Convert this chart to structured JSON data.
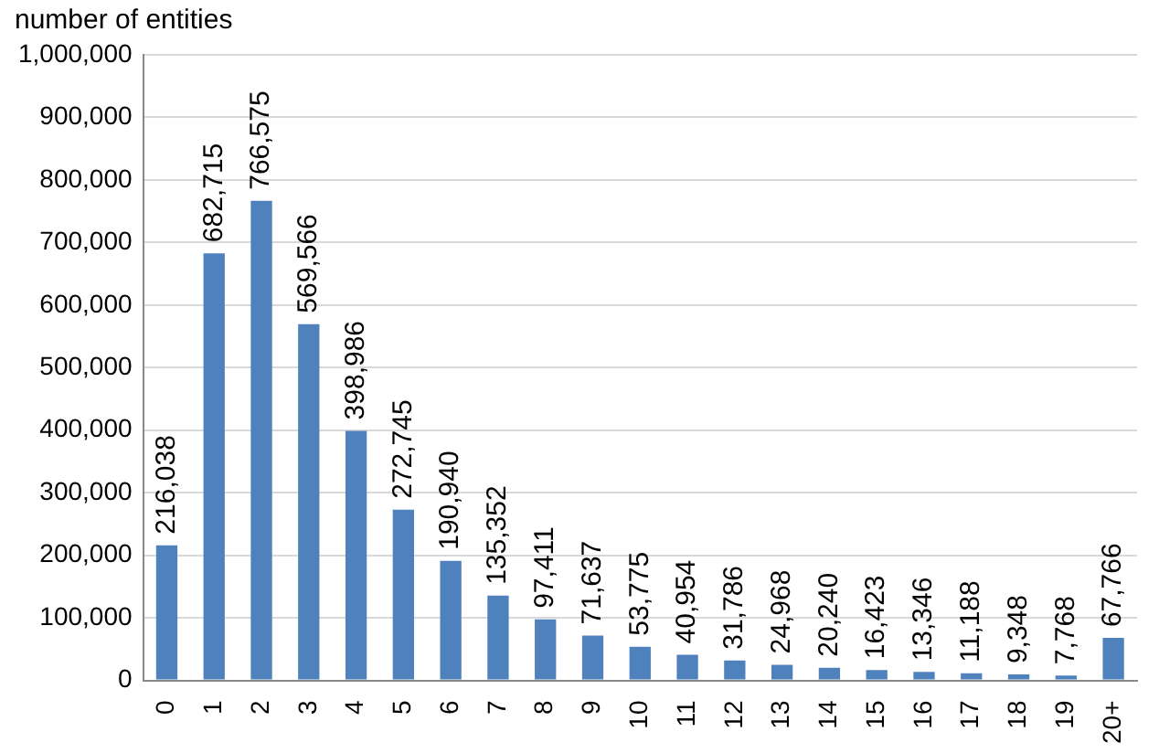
{
  "chart_data": {
    "type": "bar",
    "ylabel": "number of entities",
    "categories": [
      "0",
      "1",
      "2",
      "3",
      "4",
      "5",
      "6",
      "7",
      "8",
      "9",
      "10",
      "11",
      "12",
      "13",
      "14",
      "15",
      "16",
      "17",
      "18",
      "19",
      "20+"
    ],
    "values": [
      216038,
      682715,
      766575,
      569566,
      398986,
      272745,
      190940,
      135352,
      97411,
      71637,
      53775,
      40954,
      31786,
      24968,
      20240,
      16423,
      13346,
      11188,
      9348,
      7768,
      67766
    ],
    "value_labels": [
      "216,038",
      "682,715",
      "766,575",
      "569,566",
      "398,986",
      "272,745",
      "190,940",
      "135,352",
      "97,411",
      "71,637",
      "53,775",
      "40,954",
      "31,786",
      "24,968",
      "20,240",
      "16,423",
      "13,346",
      "11,188",
      "9,348",
      "7,768",
      "67,766"
    ],
    "color": "#4f81bd",
    "ylim": [
      0,
      1000000
    ],
    "yticks": [
      0,
      {
        "value": 100000,
        "label": "100,000"
      },
      {
        "value": 200000,
        "label": "200,000"
      },
      {
        "value": 300000,
        "label": "300,000"
      },
      {
        "value": 400000,
        "label": "400,000"
      },
      {
        "value": 500000,
        "label": "500,000"
      },
      {
        "value": 600000,
        "label": "600,000"
      },
      {
        "value": 700000,
        "label": "700,000"
      },
      {
        "value": 800000,
        "label": "800,000"
      },
      {
        "value": 900000,
        "label": "900,000"
      },
      {
        "value": 1000000,
        "label": "1,000,000"
      }
    ],
    "grid": "y",
    "legend": false
  }
}
